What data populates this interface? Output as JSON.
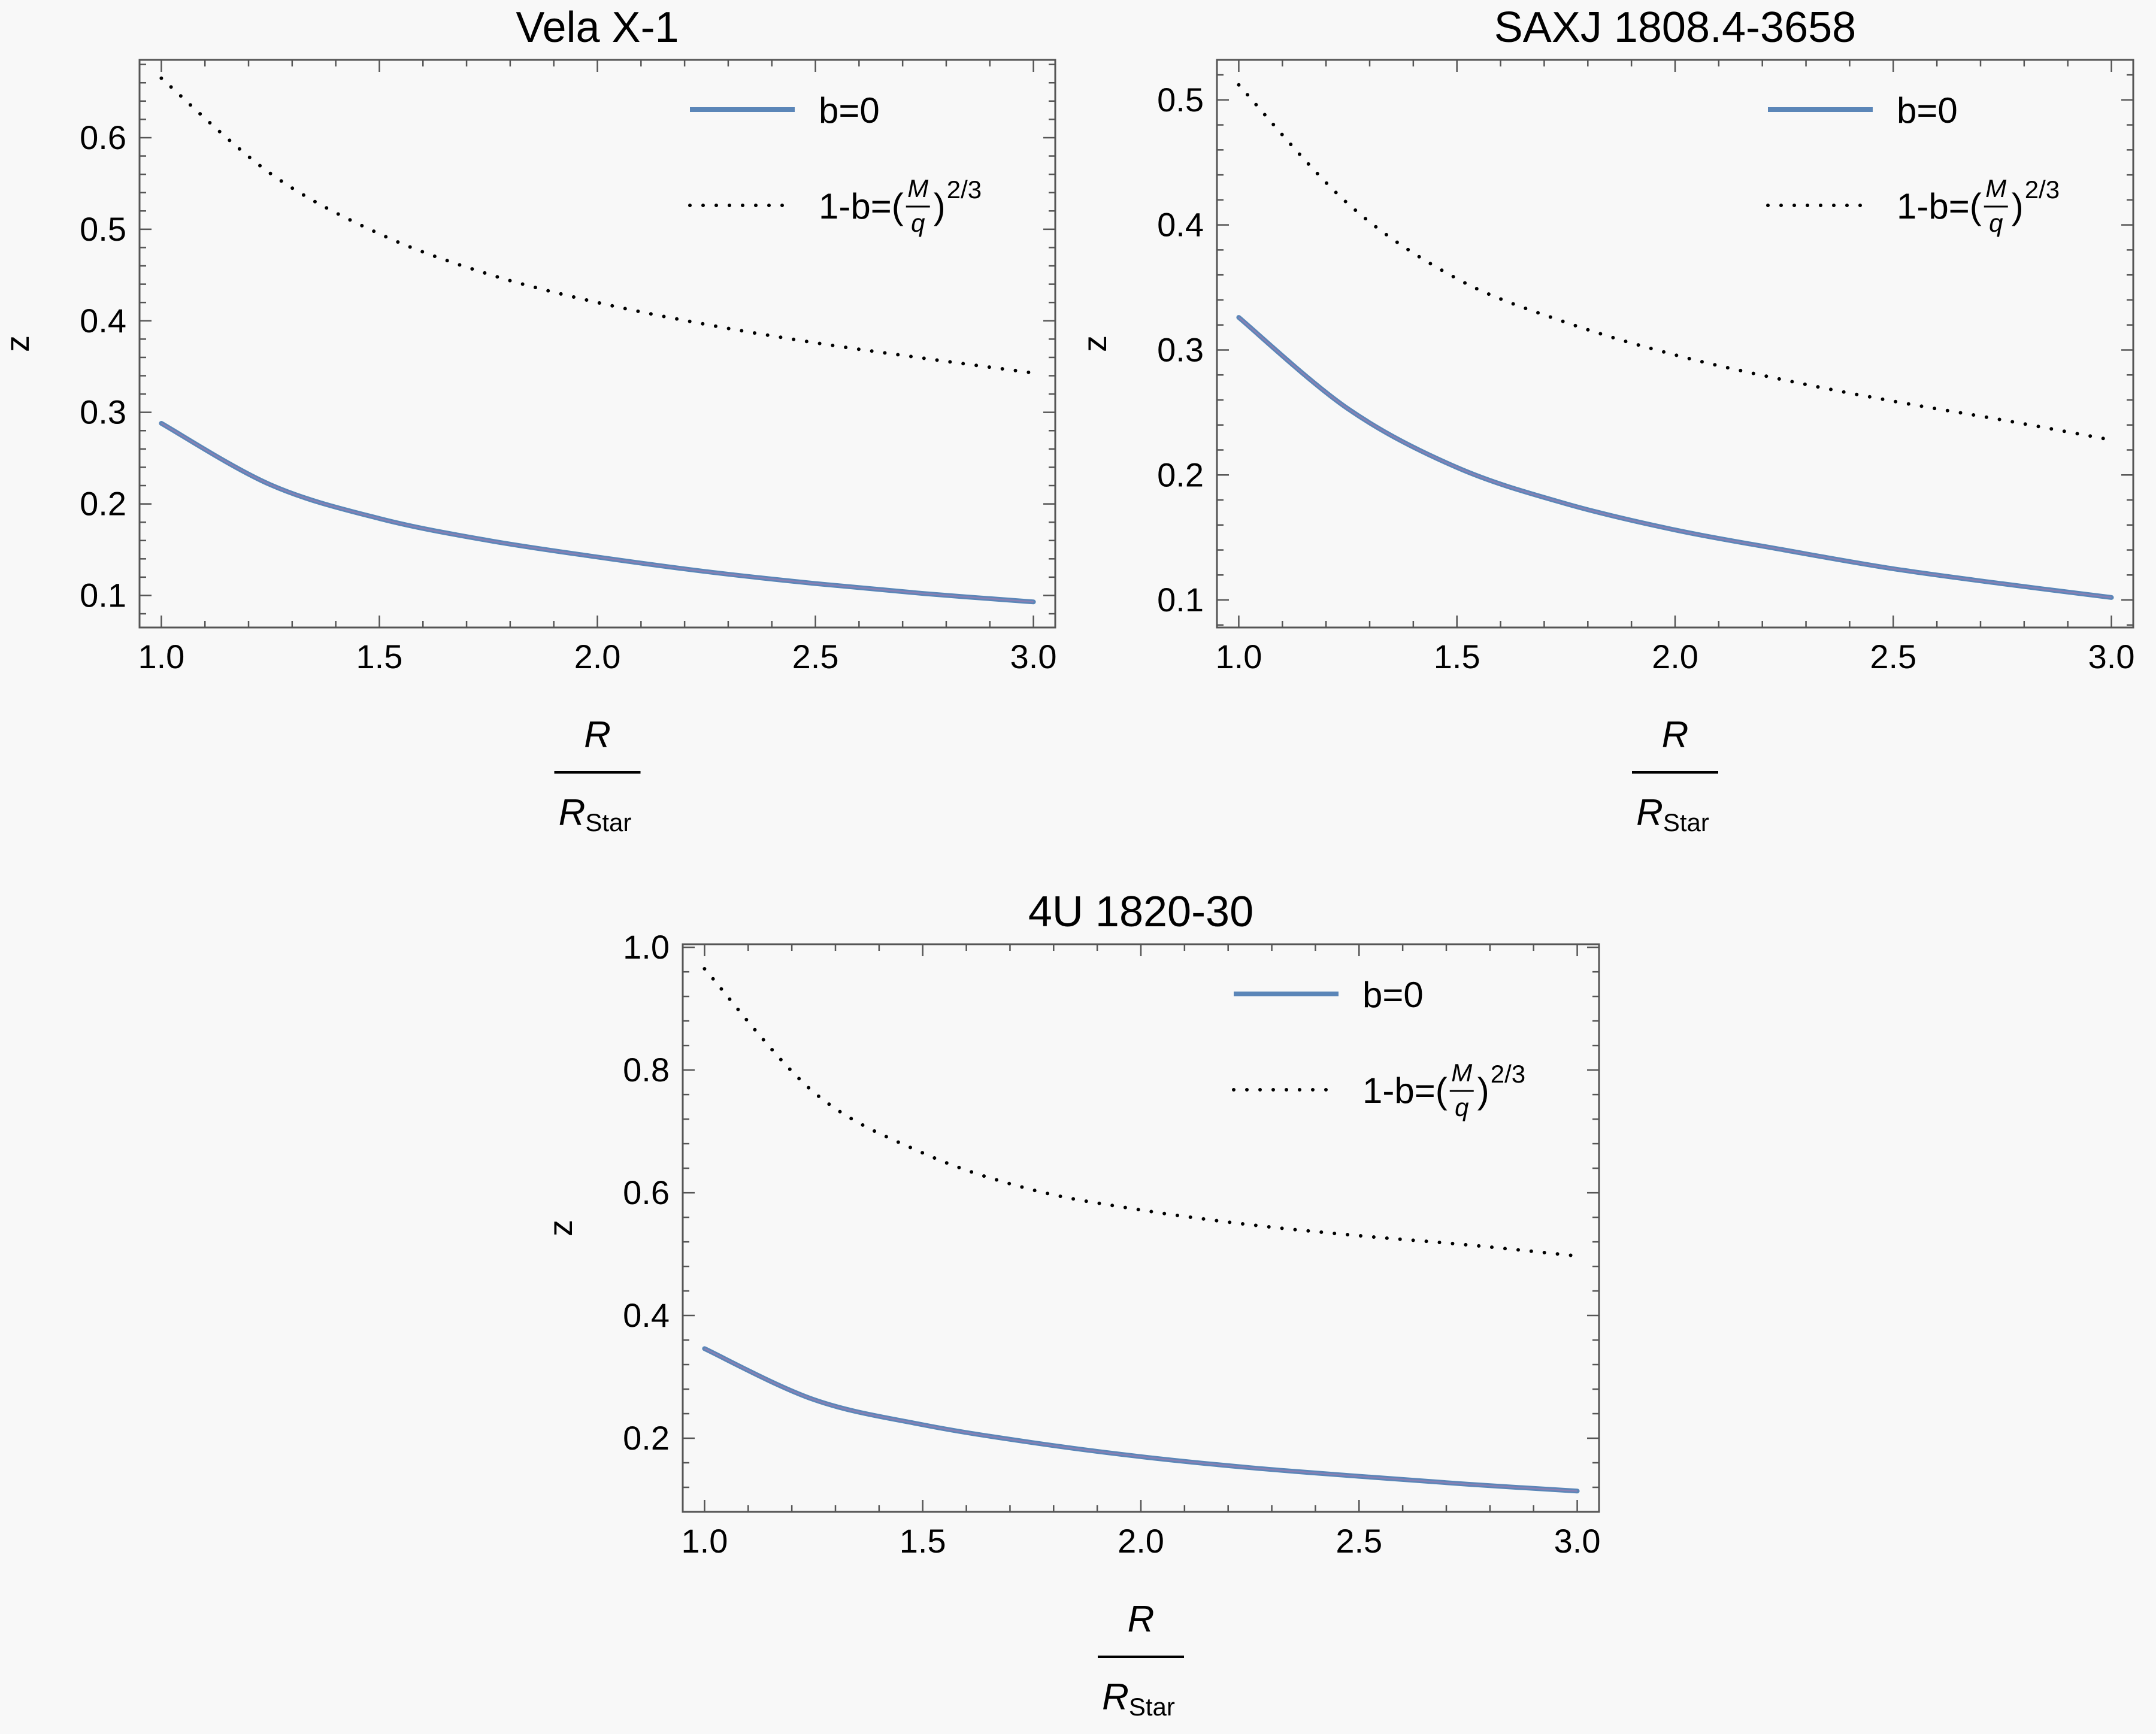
{
  "chart_data": [
    {
      "type": "line",
      "title": "Vela X-1",
      "xlabel": {
        "numerator": "R",
        "denominator_main": "R",
        "denominator_sub": "Star"
      },
      "ylabel": "z",
      "xlim": [
        0.95,
        3.05
      ],
      "ylim": [
        0.065,
        0.685
      ],
      "xticks": [
        "1.0",
        "1.5",
        "2.0",
        "2.5",
        "3.0"
      ],
      "yticks": [
        "0.1",
        "0.2",
        "0.3",
        "0.4",
        "0.5",
        "0.6"
      ],
      "legend": {
        "position": "top-right",
        "entries": [
          {
            "text": "b=0"
          },
          {
            "prefix": "1-b=(",
            "num": "M",
            "den": "q",
            "suffix": ")",
            "power": "2/3"
          }
        ]
      },
      "series": [
        {
          "style": "solid",
          "color": "#5b86b8",
          "x": [
            1.0,
            1.25,
            1.5,
            1.75,
            2.0,
            2.25,
            2.5,
            2.75,
            3.0
          ],
          "y": [
            0.288,
            0.221,
            0.184,
            0.16,
            0.142,
            0.126,
            0.113,
            0.102,
            0.093
          ]
        },
        {
          "style": "dotted",
          "color": "#000000",
          "x": [
            1.0,
            1.25,
            1.5,
            1.75,
            2.0,
            2.25,
            2.5,
            2.75,
            3.0
          ],
          "y": [
            0.665,
            0.561,
            0.495,
            0.451,
            0.42,
            0.396,
            0.376,
            0.359,
            0.343
          ]
        }
      ]
    },
    {
      "type": "line",
      "title": "SAXJ 1808.4-3658",
      "xlabel": {
        "numerator": "R",
        "denominator_main": "R",
        "denominator_sub": "Star"
      },
      "ylabel": "z",
      "xlim": [
        0.95,
        3.05
      ],
      "ylim": [
        0.078,
        0.532
      ],
      "xticks": [
        "1.0",
        "1.5",
        "2.0",
        "2.5",
        "3.0"
      ],
      "yticks": [
        "0.1",
        "0.2",
        "0.3",
        "0.4",
        "0.5"
      ],
      "legend": {
        "position": "top-right",
        "entries": [
          {
            "text": "b=0"
          },
          {
            "prefix": "1-b=(",
            "num": "M",
            "den": "q",
            "suffix": ")",
            "power": "2/3"
          }
        ]
      },
      "series": [
        {
          "style": "solid",
          "color": "#5b86b8",
          "x": [
            1.0,
            1.25,
            1.5,
            1.75,
            2.0,
            2.25,
            2.5,
            2.75,
            3.0
          ],
          "y": [
            0.326,
            0.253,
            0.206,
            0.177,
            0.156,
            0.14,
            0.125,
            0.113,
            0.102
          ]
        },
        {
          "style": "dotted",
          "color": "#000000",
          "x": [
            1.0,
            1.25,
            1.5,
            1.75,
            2.0,
            2.25,
            2.5,
            2.75,
            3.0
          ],
          "y": [
            0.512,
            0.417,
            0.357,
            0.322,
            0.296,
            0.276,
            0.259,
            0.244,
            0.228
          ]
        }
      ]
    },
    {
      "type": "line",
      "title": "4U 1820-30",
      "xlabel": {
        "numerator": "R",
        "denominator_main": "R",
        "denominator_sub": "Star"
      },
      "ylabel": "z",
      "xlim": [
        0.95,
        3.05
      ],
      "ylim": [
        0.08,
        1.005
      ],
      "xticks": [
        "1.0",
        "1.5",
        "2.0",
        "2.5",
        "3.0"
      ],
      "yticks": [
        "0.2",
        "0.4",
        "0.6",
        "0.8",
        "1.0"
      ],
      "legend": {
        "position": "top-right",
        "entries": [
          {
            "text": "b=0"
          },
          {
            "prefix": "1-b=(",
            "num": "M",
            "den": "q",
            "suffix": ")",
            "power": "2/3"
          }
        ]
      },
      "series": [
        {
          "style": "solid",
          "color": "#5b86b8",
          "x": [
            1.0,
            1.25,
            1.5,
            1.75,
            2.0,
            2.25,
            2.5,
            2.75,
            3.0
          ],
          "y": [
            0.346,
            0.263,
            0.222,
            0.193,
            0.17,
            0.152,
            0.138,
            0.125,
            0.114
          ]
        },
        {
          "style": "dotted",
          "color": "#000000",
          "x": [
            1.0,
            1.25,
            1.5,
            1.75,
            2.0,
            2.25,
            2.5,
            2.75,
            3.0
          ],
          "y": [
            0.965,
            0.764,
            0.665,
            0.605,
            0.572,
            0.548,
            0.53,
            0.515,
            0.497
          ]
        }
      ]
    }
  ]
}
